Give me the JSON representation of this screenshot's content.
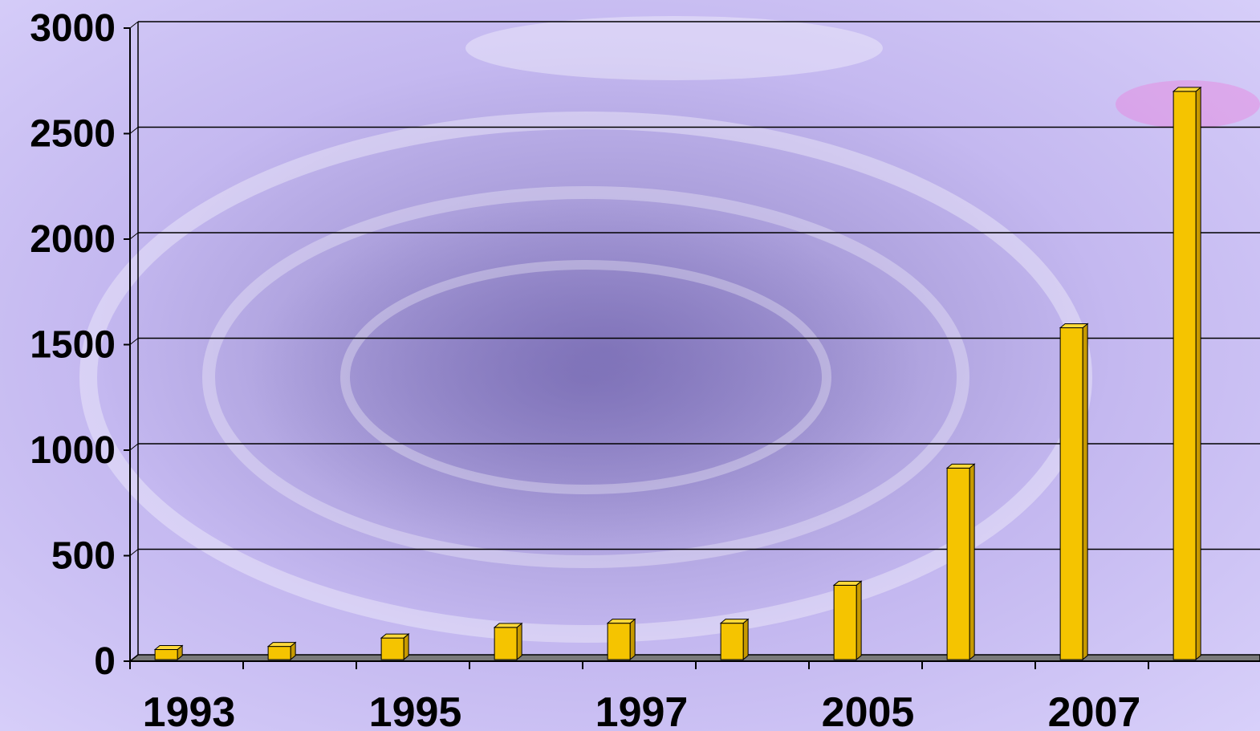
{
  "chart_data": {
    "type": "bar",
    "title": "",
    "xlabel": "",
    "ylabel": "",
    "categories": [
      "1993",
      "",
      "1995",
      "",
      "1997",
      "",
      "2005",
      "",
      "2007",
      ""
    ],
    "values": [
      55,
      70,
      110,
      160,
      180,
      180,
      360,
      915,
      1580,
      2700
    ],
    "y_ticks": [
      "0",
      "500",
      "1000",
      "1500",
      "2000",
      "2500",
      "3000"
    ],
    "ylim": [
      0,
      3000
    ],
    "grid": true,
    "legend": "none",
    "colors": {
      "bar": "#f5c400",
      "bar_top": "#ffd93a",
      "bar_side": "#c79a00",
      "grid": "#000000",
      "floor": "#7a7a7a"
    }
  }
}
